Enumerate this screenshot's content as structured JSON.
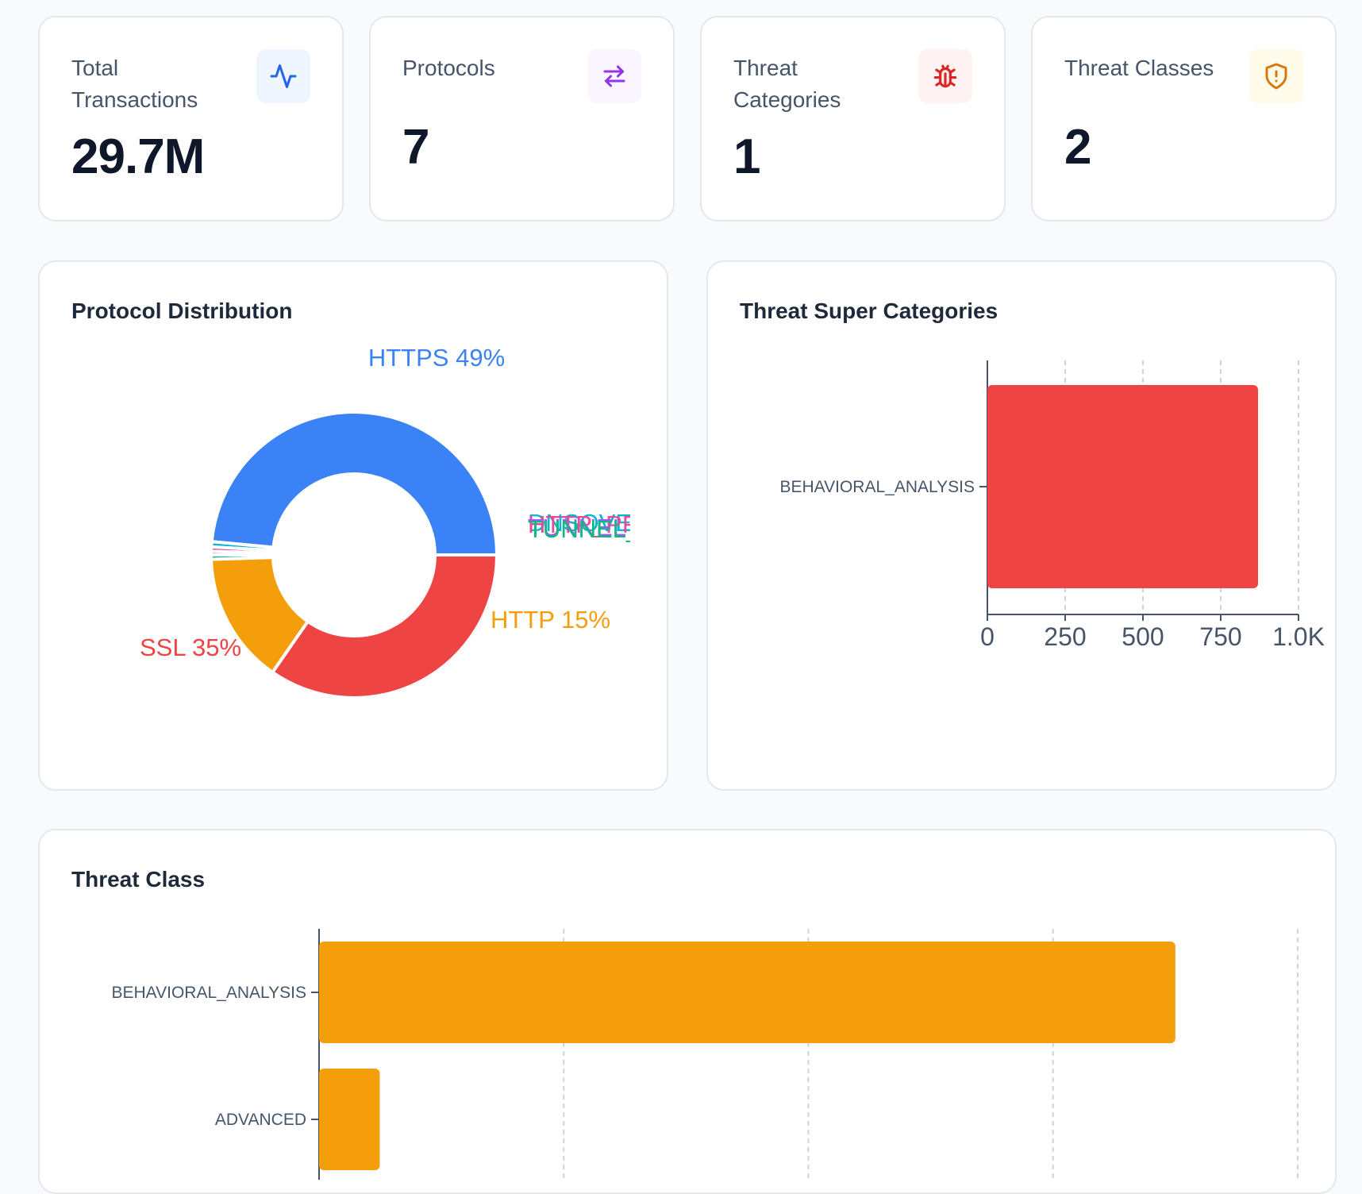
{
  "stats": [
    {
      "label_line1": "Total",
      "label_line2": "Transactions",
      "value": "29.7M",
      "icon": "activity-icon",
      "icon_color": "#2563eb",
      "icon_bg": "#eff6ff"
    },
    {
      "label_line1": "Protocols",
      "label_line2": "",
      "value": "7",
      "icon": "arrows-swap-icon",
      "icon_color": "#9333ea",
      "icon_bg": "#faf5ff"
    },
    {
      "label_line1": "Threat",
      "label_line2": "Categories",
      "value": "1",
      "icon": "bug-icon",
      "icon_color": "#dc2626",
      "icon_bg": "#fef2f2"
    },
    {
      "label_line1": "Threat Classes",
      "label_line2": "",
      "value": "2",
      "icon": "shield-alert-icon",
      "icon_color": "#d97706",
      "icon_bg": "#fffbeb"
    }
  ],
  "protocol_panel": {
    "title": "Protocol Distribution"
  },
  "super_panel": {
    "title": "Threat Super Categories"
  },
  "class_panel": {
    "title": "Threat Class"
  },
  "chart_data": [
    {
      "type": "pie",
      "title": "Protocol Distribution",
      "slices": [
        {
          "label": "HTTPS",
          "value": 49,
          "text": "HTTPS 49%",
          "color": "#3b82f6"
        },
        {
          "label": "DNSOVER...",
          "value": 0.6,
          "text": "DNSOVER",
          "color": "#06b6d4"
        },
        {
          "label": "HTTP_PR...",
          "value": 0.5,
          "text": "HTTP_PR",
          "color": "#ec4899"
        },
        {
          "label": "TUNNEL",
          "value": 0.4,
          "text": "TUNNEL",
          "color": "#a855f7"
        },
        {
          "label": "TUNNEL_...",
          "value": 0.5,
          "text": "TUNNEL_",
          "color": "#10b981"
        },
        {
          "label": "HTTP",
          "value": 15,
          "text": "HTTP 15%",
          "color": "#f59e0b"
        },
        {
          "label": "SSL",
          "value": 35,
          "text": "SSL 35%",
          "color": "#ef4444"
        }
      ]
    },
    {
      "type": "bar",
      "orientation": "horizontal",
      "title": "Threat Super Categories",
      "categories": [
        "BEHAVIORAL_ANALYSIS"
      ],
      "values": [
        870
      ],
      "color": "#ef4444",
      "xlim": [
        0,
        1000
      ],
      "xticks": [
        0,
        250,
        500,
        750,
        1000
      ],
      "xtick_labels": [
        "0",
        "250",
        "500",
        "750",
        "1.0K"
      ],
      "grid": "vertical dashed"
    },
    {
      "type": "bar",
      "orientation": "horizontal",
      "title": "Threat Class",
      "categories": [
        "BEHAVIORAL_ANALYSIS",
        "ADVANCED"
      ],
      "values": [
        875,
        62
      ],
      "color": "#f59e0b",
      "xlim": [
        0,
        1000
      ],
      "grid": "vertical dashed"
    }
  ]
}
